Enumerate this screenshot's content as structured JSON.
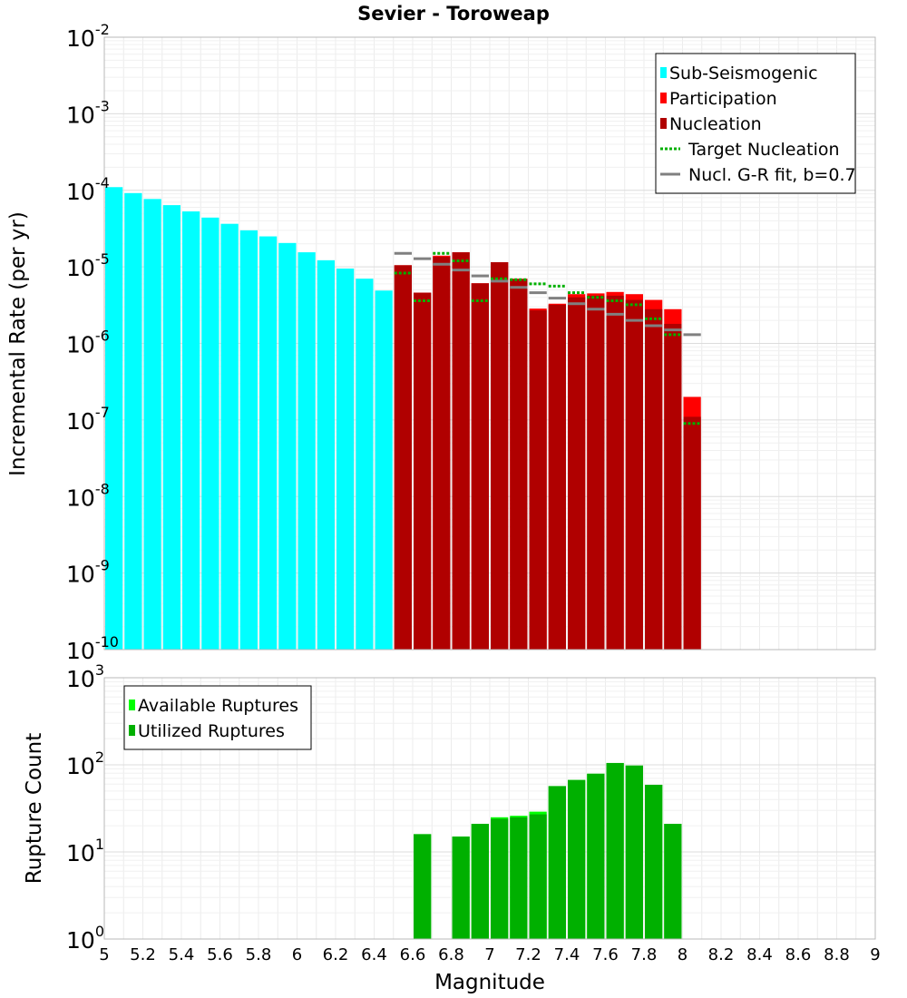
{
  "chart_data": [
    {
      "type": "bar",
      "title": "Sevier - Toroweap",
      "xlabel": "Magnitude",
      "ylabel": "Incremental Rate (per yr)",
      "yscale": "log",
      "ylim_exp": [
        -10,
        -2
      ],
      "xlim": [
        5,
        9
      ],
      "bin_width": 0.1,
      "legend": {
        "placement": "top-right",
        "entries": [
          {
            "label": "Sub-Seismogenic",
            "color": "#00ffff",
            "kind": "bar"
          },
          {
            "label": "Participation",
            "color": "#ff0000",
            "kind": "bar"
          },
          {
            "label": "Nucleation",
            "color": "#b00000",
            "kind": "bar"
          },
          {
            "label": "Target Nucleation",
            "color": "#00b000",
            "kind": "dotted"
          },
          {
            "label": "Nucl. G-R fit, b=0.7",
            "color": "#808080",
            "kind": "line"
          }
        ]
      },
      "series": [
        {
          "name": "Sub-Seismogenic",
          "x": [
            5.05,
            5.15,
            5.25,
            5.35,
            5.45,
            5.55,
            5.65,
            5.75,
            5.85,
            5.95,
            6.05,
            6.15,
            6.25,
            6.35,
            6.45
          ],
          "values": [
            0.00011,
            9.2e-05,
            7.7e-05,
            6.4e-05,
            5.3e-05,
            4.4e-05,
            3.65e-05,
            3e-05,
            2.5e-05,
            2.05e-05,
            1.55e-05,
            1.22e-05,
            9.5e-06,
            7e-06,
            4.9e-06
          ]
        },
        {
          "name": "Participation",
          "x": [
            6.55,
            6.65,
            6.75,
            6.85,
            6.95,
            7.05,
            7.15,
            7.25,
            7.35,
            7.45,
            7.55,
            7.65,
            7.75,
            7.85,
            7.95,
            8.05
          ],
          "values": [
            1.05e-05,
            4.6e-06,
            1.4e-05,
            1.55e-05,
            6.1e-06,
            1.15e-05,
            7e-06,
            2.85e-06,
            3.3e-06,
            4.4e-06,
            4.5e-06,
            4.7e-06,
            4.4e-06,
            3.7e-06,
            2.8e-06,
            2e-07
          ]
        },
        {
          "name": "Nucleation",
          "x": [
            6.55,
            6.65,
            6.75,
            6.85,
            6.95,
            7.05,
            7.15,
            7.25,
            7.35,
            7.45,
            7.55,
            7.65,
            7.75,
            7.85,
            7.95,
            8.05
          ],
          "values": [
            1.05e-05,
            4.6e-06,
            1.35e-05,
            1.55e-05,
            6.1e-06,
            1.15e-05,
            6.9e-06,
            2.7e-06,
            3.2e-06,
            4e-06,
            4.2e-06,
            4.2e-06,
            3.7e-06,
            2.8e-06,
            1.8e-06,
            1.1e-07
          ]
        },
        {
          "name": "Target Nucleation",
          "x": [
            6.55,
            6.65,
            6.75,
            6.85,
            6.95,
            7.05,
            7.15,
            7.25,
            7.35,
            7.45,
            7.55,
            7.65,
            7.75,
            7.85,
            7.95,
            8.05
          ],
          "values": [
            8.3e-06,
            3.6e-06,
            1.5e-05,
            1.2e-05,
            3.6e-06,
            7e-06,
            6.8e-06,
            6e-06,
            5.6e-06,
            4.6e-06,
            4e-06,
            3.6e-06,
            3.2e-06,
            2.1e-06,
            1.3e-06,
            9e-08
          ]
        },
        {
          "name": "Nucl. G-R fit, b=0.7",
          "x": [
            6.55,
            6.65,
            6.75,
            6.85,
            6.95,
            7.05,
            7.15,
            7.25,
            7.35,
            7.45,
            7.55,
            7.65,
            7.75,
            7.85,
            7.95,
            8.05
          ],
          "values": [
            1.5e-05,
            1.28e-05,
            1.08e-05,
            9.1e-06,
            7.6e-06,
            6.5e-06,
            5.4e-06,
            4.6e-06,
            3.9e-06,
            3.3e-06,
            2.8e-06,
            2.4e-06,
            2e-06,
            1.7e-06,
            1.5e-06,
            1.3e-06
          ]
        }
      ]
    },
    {
      "type": "bar",
      "xlabel": "Magnitude",
      "ylabel": "Rupture Count",
      "yscale": "log",
      "ylim_exp": [
        0,
        3
      ],
      "xlim": [
        5,
        9
      ],
      "bin_width": 0.1,
      "xticks": [
        "5",
        "5.2",
        "5.4",
        "5.6",
        "5.8",
        "6",
        "6.2",
        "6.4",
        "6.6",
        "6.8",
        "7",
        "7.2",
        "7.4",
        "7.6",
        "7.8",
        "8",
        "8.2",
        "8.4",
        "8.6",
        "8.8",
        "9"
      ],
      "legend": {
        "placement": "top-left",
        "entries": [
          {
            "label": "Available Ruptures",
            "color": "#00ff00",
            "kind": "bar"
          },
          {
            "label": "Utilized Ruptures",
            "color": "#00b000",
            "kind": "bar"
          }
        ]
      },
      "series": [
        {
          "name": "Available Ruptures",
          "x": [
            6.65,
            6.85,
            6.95,
            7.05,
            7.15,
            7.25,
            7.35,
            7.45,
            7.55,
            7.65,
            7.75,
            7.85,
            7.95
          ],
          "values": [
            16,
            15,
            21,
            25,
            26,
            29,
            57,
            67,
            79,
            105,
            98,
            59,
            21
          ]
        },
        {
          "name": "Utilized Ruptures",
          "x": [
            6.65,
            6.85,
            6.95,
            7.05,
            7.15,
            7.25,
            7.35,
            7.45,
            7.55,
            7.65,
            7.75,
            7.85,
            7.95
          ],
          "values": [
            16,
            15,
            21,
            24,
            25,
            27,
            57,
            67,
            79,
            105,
            98,
            59,
            21
          ]
        }
      ]
    }
  ]
}
